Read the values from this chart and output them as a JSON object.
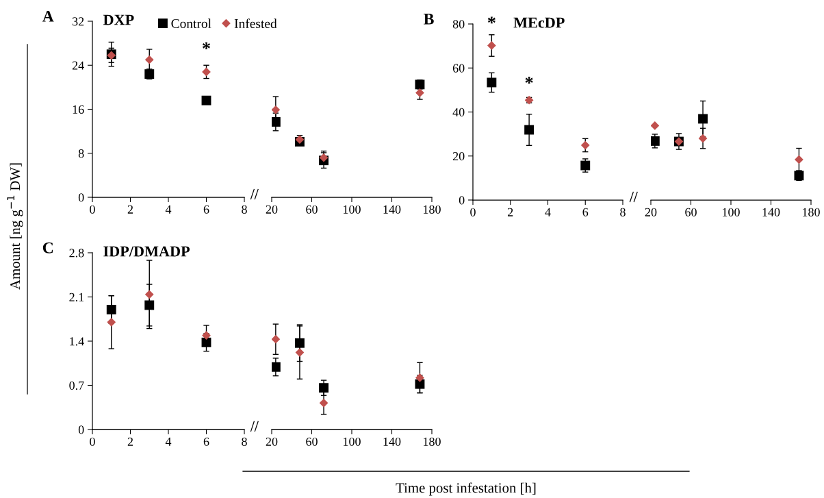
{
  "chart_data": [
    {
      "type": "scatter",
      "title": "DXP",
      "ylabel": "Amount [ng g$^{−1}$ DW]",
      "annotations": [
        "A",
        {
          "text": "*",
          "x": 6,
          "y": 22.8
        }
      ],
      "xlim": [
        0,
        8
      ],
      "xticks": [
        0,
        2,
        4,
        6,
        8
      ],
      "ylim": [
        0,
        32
      ],
      "yticks": [
        0,
        8,
        16,
        24,
        32
      ],
      "legend": "top right",
      "grid": false,
      "series": [
        {
          "name": "Control",
          "color": "#000000",
          "marker": "square",
          "x": [
            1,
            3,
            6
          ],
          "values": [
            26.0,
            22.4,
            17.6
          ],
          "errors": [
            2.2,
            0.9,
            0.3
          ]
        },
        {
          "name": "Infested",
          "color": "#c0504d",
          "marker": "diamond",
          "x": [
            1,
            3,
            6
          ],
          "values": [
            25.8,
            25.0,
            22.8
          ],
          "errors": [
            1.3,
            1.9,
            1.2
          ]
        }
      ]
    },
    {
      "type": "scatter",
      "xlim": [
        20,
        180
      ],
      "xticks": [
        20,
        60,
        100,
        140,
        180
      ],
      "ylim": [
        0,
        32
      ],
      "tick_labels": "x",
      "grid": false,
      "series": [
        {
          "color": "#000000",
          "marker": "square",
          "x": [
            24,
            48,
            72,
            168
          ],
          "values": [
            13.7,
            10.1,
            6.7,
            20.5
          ],
          "errors": [
            1.6,
            0.4,
            1.4,
            0.8
          ]
        },
        {
          "color": "#c0504d",
          "marker": "diamond",
          "x": [
            24,
            48,
            72,
            168
          ],
          "values": [
            15.9,
            10.5,
            7.2,
            19.0
          ],
          "errors": [
            2.4,
            0.75,
            1.2,
            1.2
          ]
        }
      ]
    },
    {
      "type": "scatter",
      "title": "MEcDP",
      "annotations": [
        "B",
        {
          "text": "*",
          "x": 1,
          "y": 70.2
        },
        {
          "text": "*",
          "x": 3,
          "y": 45.4
        }
      ],
      "xlim": [
        0,
        8
      ],
      "xticks": [
        0,
        2,
        4,
        6,
        8
      ],
      "ylim": [
        0,
        80
      ],
      "yticks": [
        0,
        20,
        40,
        60,
        80
      ],
      "grid": false,
      "series": [
        {
          "color": "#000000",
          "marker": "square",
          "x": [
            1,
            3,
            6
          ],
          "values": [
            53.4,
            31.9,
            15.7
          ],
          "errors": [
            4.4,
            7.1,
            3.0
          ]
        },
        {
          "color": "#c0504d",
          "marker": "diamond",
          "x": [
            1,
            3,
            6
          ],
          "values": [
            70.2,
            45.4,
            24.9
          ],
          "errors": [
            4.9,
            1.2,
            3.0
          ]
        }
      ]
    },
    {
      "type": "scatter",
      "xlim": [
        20,
        180
      ],
      "xticks": [
        20,
        60,
        100,
        140,
        180
      ],
      "ylim": [
        0,
        80
      ],
      "tick_labels": "x",
      "grid": false,
      "series": [
        {
          "color": "#000000",
          "marker": "square",
          "x": [
            24,
            48,
            72,
            168
          ],
          "values": [
            26.8,
            26.6,
            36.9,
            11.1
          ],
          "errors": [
            3.1,
            3.6,
            8.1,
            2.2
          ]
        },
        {
          "color": "#c0504d",
          "marker": "diamond",
          "x": [
            24,
            48,
            72,
            168
          ],
          "values": [
            33.8,
            26.6,
            28.0,
            18.4
          ],
          "errors": [
            null,
            1.0,
            4.6,
            5.1
          ]
        }
      ]
    },
    {
      "type": "scatter",
      "title": "IDP/DMADP",
      "annotations": [
        "C"
      ],
      "xlim": [
        0,
        8
      ],
      "xticks": [
        0,
        2,
        4,
        6,
        8
      ],
      "ylim": [
        0,
        2.8
      ],
      "yticks": [
        0,
        0.7,
        1.4,
        2.1,
        2.8
      ],
      "grid": false,
      "series": [
        {
          "color": "#000000",
          "marker": "square",
          "x": [
            1,
            3,
            6
          ],
          "values": [
            1.9,
            1.97,
            1.38
          ],
          "errors": [
            0.22,
            0.33,
            0.14
          ]
        },
        {
          "color": "#c0504d",
          "marker": "diamond",
          "x": [
            1,
            3,
            6
          ],
          "values": [
            1.7,
            2.14,
            1.49
          ],
          "errors": [
            0.42,
            0.54,
            0.16
          ]
        }
      ]
    },
    {
      "type": "scatter",
      "xlabel": "Time post infestation [h]",
      "xlim": [
        20,
        180
      ],
      "xticks": [
        20,
        60,
        100,
        140,
        180
      ],
      "ylim": [
        0,
        2.8
      ],
      "tick_labels": "x",
      "grid": false,
      "series": [
        {
          "color": "#000000",
          "marker": "square",
          "x": [
            24,
            48,
            72,
            168
          ],
          "values": [
            0.99,
            1.37,
            0.66,
            0.72
          ],
          "errors": [
            0.14,
            0.29,
            0.12,
            0.14
          ]
        },
        {
          "color": "#c0504d",
          "marker": "diamond",
          "x": [
            24,
            48,
            72,
            168
          ],
          "values": [
            1.43,
            1.22,
            0.42,
            0.82
          ],
          "errors": [
            0.24,
            0.42,
            0.18,
            0.24
          ]
        }
      ]
    }
  ]
}
